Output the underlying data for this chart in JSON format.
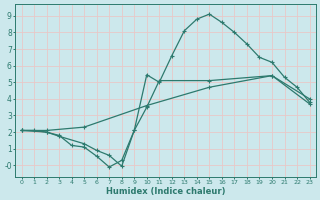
{
  "xlabel": "Humidex (Indice chaleur)",
  "xlim": [
    -0.5,
    23.5
  ],
  "ylim": [
    -0.7,
    9.7
  ],
  "xticks": [
    0,
    1,
    2,
    3,
    4,
    5,
    6,
    7,
    8,
    9,
    10,
    11,
    12,
    13,
    14,
    15,
    16,
    17,
    18,
    19,
    20,
    21,
    22,
    23
  ],
  "yticks": [
    0,
    1,
    2,
    3,
    4,
    5,
    6,
    7,
    8,
    9
  ],
  "ytick_labels": [
    "-0",
    "1",
    "2",
    "3",
    "4",
    "5",
    "6",
    "7",
    "8",
    "9"
  ],
  "background_color": "#cce8ec",
  "grid_color": "#e8c8c8",
  "line_color": "#2d7a6e",
  "curve1_x": [
    0,
    1,
    2,
    3,
    4,
    5,
    6,
    7,
    8,
    9,
    10,
    11,
    12,
    13,
    14,
    15,
    16,
    17,
    18,
    19,
    20,
    21,
    22,
    23
  ],
  "curve1_y": [
    2.1,
    2.1,
    2.0,
    1.8,
    1.2,
    1.1,
    0.55,
    -0.1,
    0.3,
    2.1,
    5.45,
    5.0,
    6.6,
    8.1,
    8.8,
    9.1,
    8.6,
    8.0,
    7.3,
    6.5,
    6.2,
    5.3,
    4.7,
    3.8
  ],
  "curve2_x": [
    0,
    2,
    3,
    5,
    6,
    7,
    8,
    9,
    10,
    11,
    15,
    20,
    23
  ],
  "curve2_y": [
    2.1,
    2.0,
    1.75,
    1.3,
    0.9,
    0.6,
    -0.05,
    2.1,
    3.5,
    5.1,
    5.1,
    5.4,
    3.7
  ],
  "curve3_x": [
    0,
    2,
    5,
    10,
    15,
    20,
    23
  ],
  "curve3_y": [
    2.1,
    2.1,
    2.3,
    3.6,
    4.7,
    5.4,
    4.0
  ]
}
